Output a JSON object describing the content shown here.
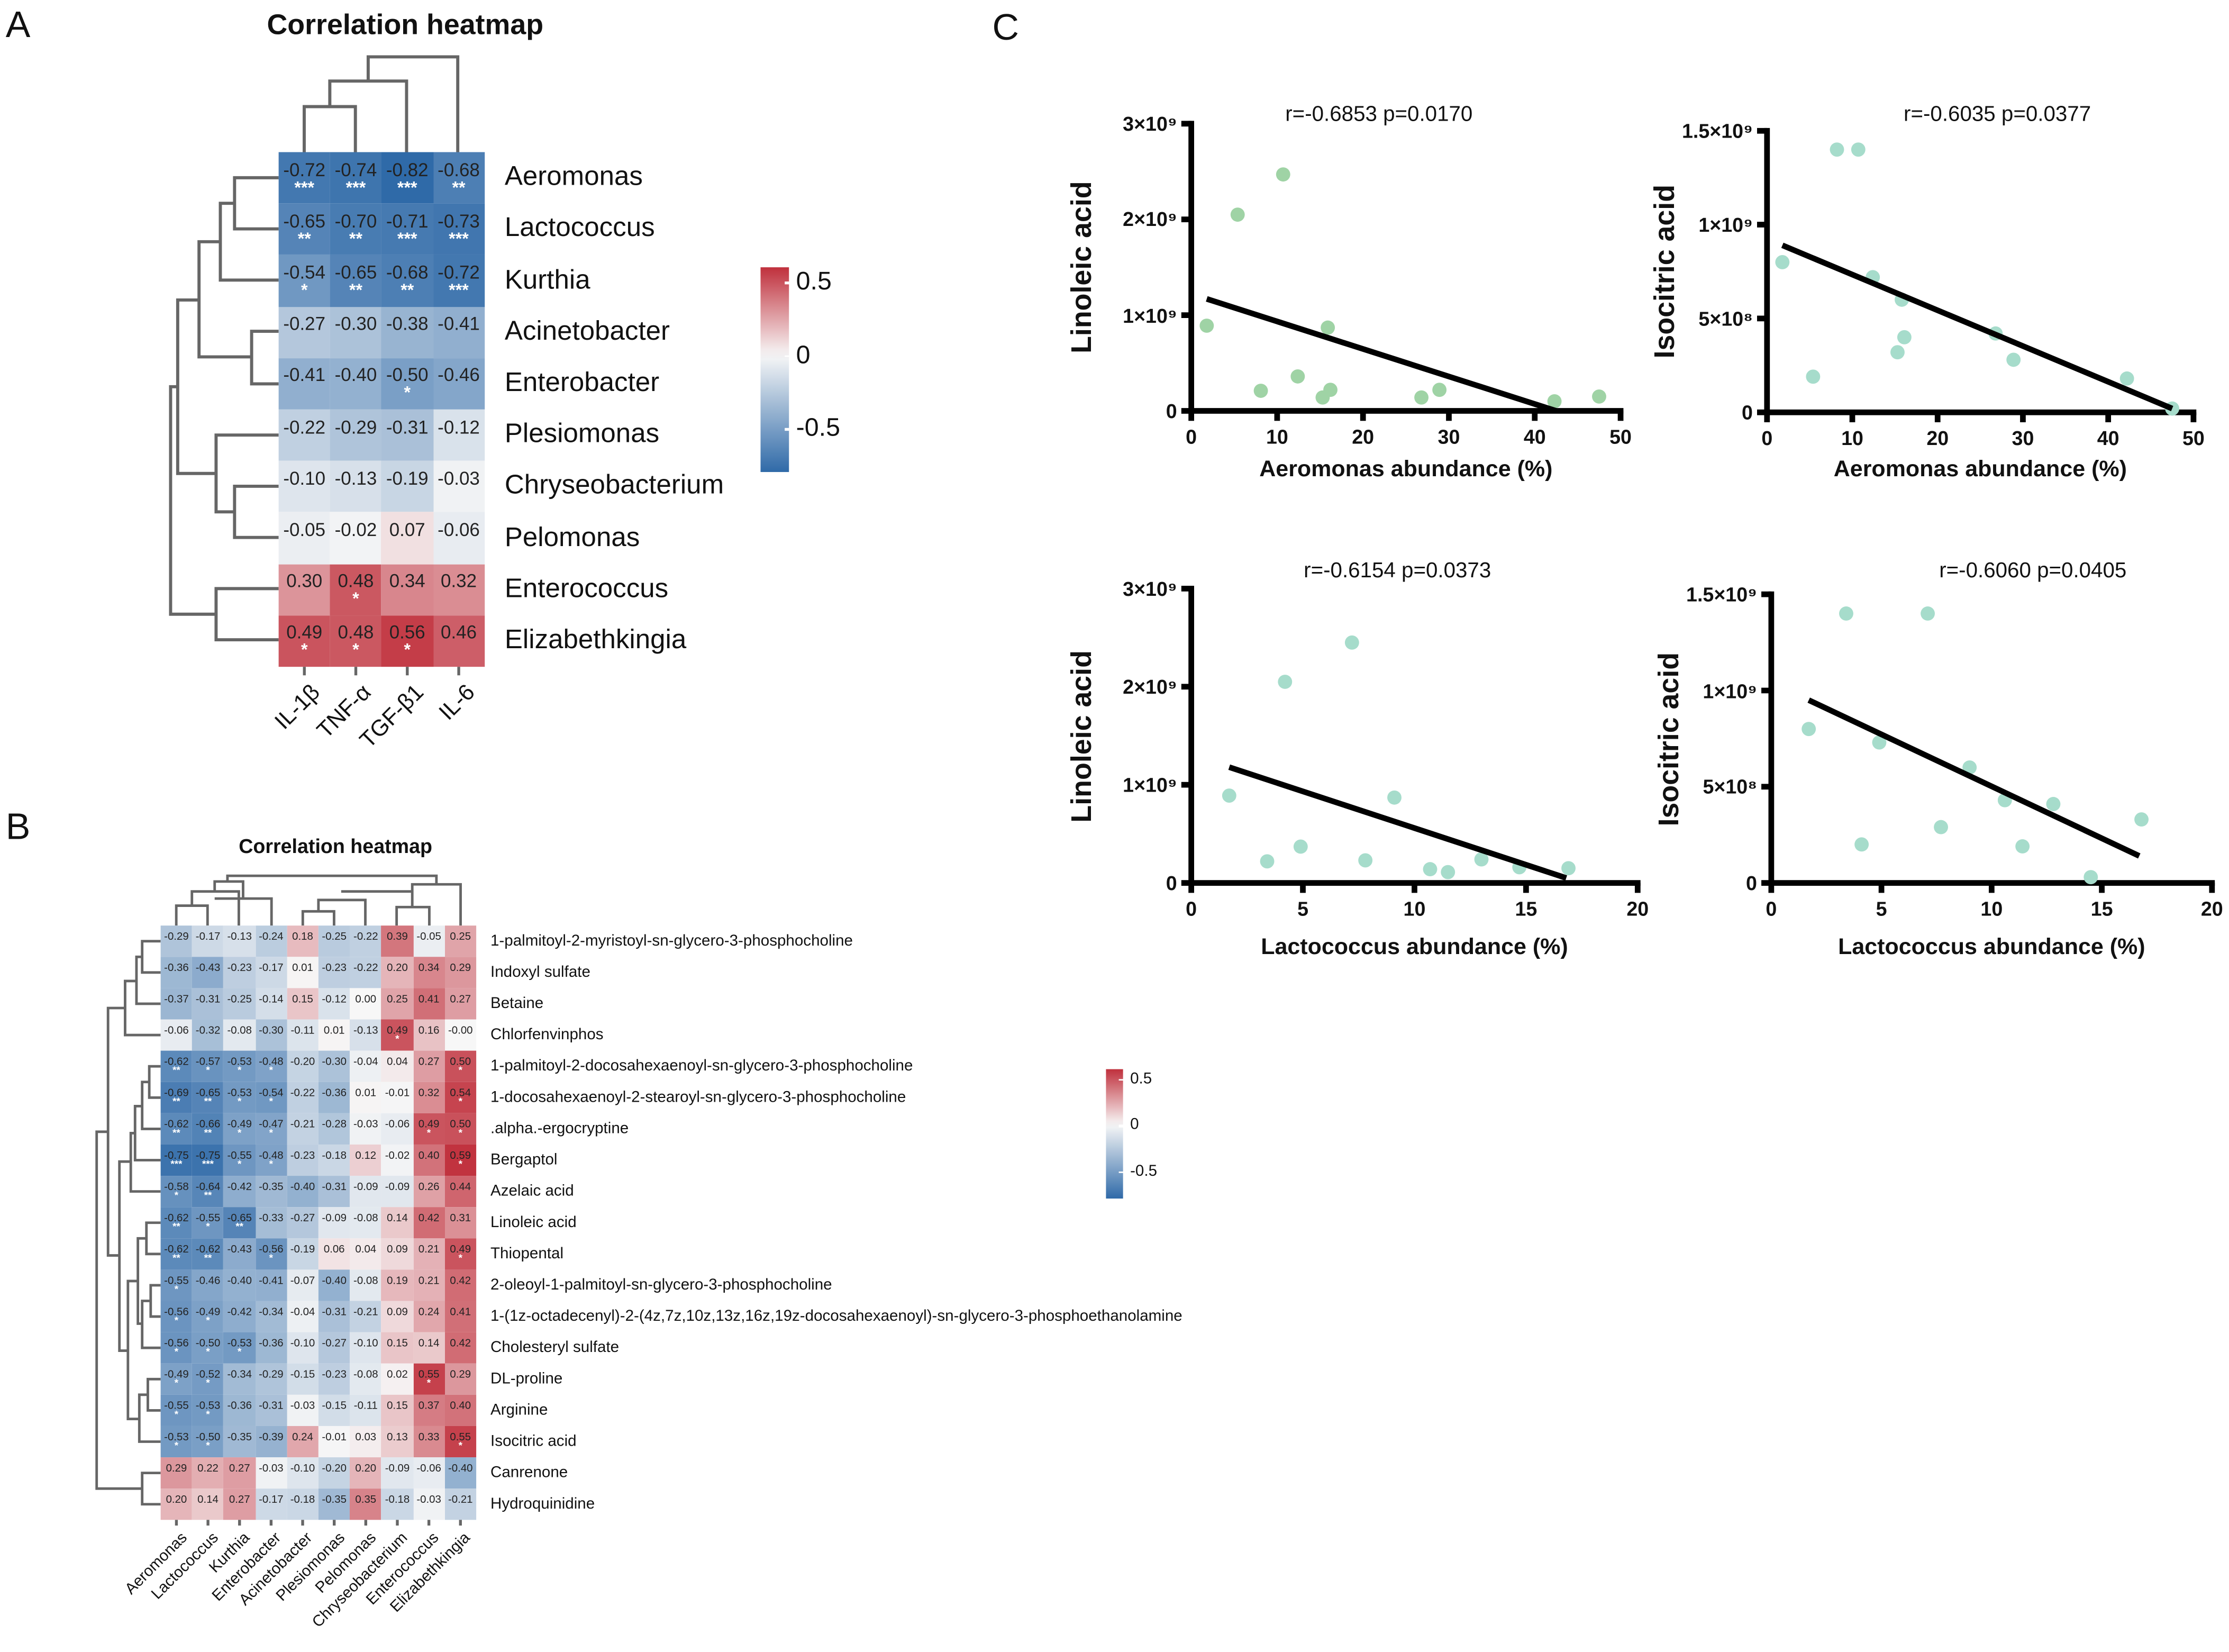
{
  "panel_labels": {
    "a": "A",
    "b": "B",
    "c": "C"
  },
  "colors": {
    "neg": "#2f6aa8",
    "mid": "#f7f7f7",
    "pos": "#c0303c",
    "point_green": "#9fd3a5",
    "point_teal": "#a6dccb",
    "line": "#000000"
  },
  "chart_data": [
    {
      "id": "A",
      "type": "heatmap",
      "title": "Correlation heatmap",
      "columns": [
        "IL-1β",
        "TNF-α",
        "TGF-β1",
        "IL-6"
      ],
      "rows": [
        {
          "name": "Aeromonas",
          "values": [
            "-0.72",
            "-0.74",
            "-0.82",
            "-0.68"
          ],
          "stars": [
            "***",
            "***",
            "***",
            "**"
          ]
        },
        {
          "name": "Lactococcus",
          "values": [
            "-0.65",
            "-0.70",
            "-0.71",
            "-0.73"
          ],
          "stars": [
            "**",
            "**",
            "***",
            "***"
          ]
        },
        {
          "name": "Kurthia",
          "values": [
            "-0.54",
            "-0.65",
            "-0.68",
            "-0.72"
          ],
          "stars": [
            "*",
            "**",
            "**",
            "***"
          ]
        },
        {
          "name": "Acinetobacter",
          "values": [
            "-0.27",
            "-0.30",
            "-0.38",
            "-0.41"
          ],
          "stars": [
            "",
            "",
            "",
            ""
          ]
        },
        {
          "name": "Enterobacter",
          "values": [
            "-0.41",
            "-0.40",
            "-0.50",
            "-0.46"
          ],
          "stars": [
            "",
            "",
            "*",
            ""
          ]
        },
        {
          "name": "Plesiomonas",
          "values": [
            "-0.22",
            "-0.29",
            "-0.31",
            "-0.12"
          ],
          "stars": [
            "",
            "",
            "",
            ""
          ]
        },
        {
          "name": "Chryseobacterium",
          "values": [
            "-0.10",
            "-0.13",
            "-0.19",
            "-0.03"
          ],
          "stars": [
            "",
            "",
            "",
            ""
          ]
        },
        {
          "name": "Pelomonas",
          "values": [
            "-0.05",
            "-0.02",
            "0.07",
            "-0.06"
          ],
          "stars": [
            "",
            "",
            "",
            ""
          ]
        },
        {
          "name": "Enterococcus",
          "values": [
            "0.30",
            "0.48",
            "0.34",
            "0.32"
          ],
          "stars": [
            "",
            "*",
            "",
            ""
          ]
        },
        {
          "name": "Elizabethkingia",
          "values": [
            "0.49",
            "0.48",
            "0.56",
            "0.46"
          ],
          "stars": [
            "*",
            "*",
            "*",
            ""
          ]
        }
      ],
      "legend": {
        "ticks": [
          "0.5",
          "0",
          "-0.5"
        ],
        "range": [
          -0.8,
          0.6
        ]
      }
    },
    {
      "id": "B",
      "type": "heatmap",
      "title": "Correlation heatmap",
      "columns": [
        "Aeromonas",
        "Lactococcus",
        "Kurthia",
        "Enterobacter",
        "Acinetobacter",
        "Plesiomonas",
        "Pelomonas",
        "Chryseobacterium",
        "Enterococcus",
        "Elizabethkingia"
      ],
      "rows": [
        {
          "name": "1-palmitoyl-2-myristoyl-sn-glycero-3-phosphocholine",
          "values": [
            "-0.29",
            "-0.17",
            "-0.13",
            "-0.24",
            "0.18",
            "-0.25",
            "-0.22",
            "0.39",
            "-0.05",
            "0.25"
          ],
          "stars": [
            "",
            "",
            "",
            "",
            "",
            "",
            "",
            "",
            "",
            ""
          ]
        },
        {
          "name": "Indoxyl sulfate",
          "values": [
            "-0.36",
            "-0.43",
            "-0.23",
            "-0.17",
            "0.01",
            "-0.23",
            "-0.22",
            "0.20",
            "0.34",
            "0.29"
          ],
          "stars": [
            "",
            "",
            "",
            "",
            "",
            "",
            "",
            "",
            "",
            ""
          ]
        },
        {
          "name": "Betaine",
          "values": [
            "-0.37",
            "-0.31",
            "-0.25",
            "-0.14",
            "0.15",
            "-0.12",
            "0.00",
            "0.25",
            "0.41",
            "0.27"
          ],
          "stars": [
            "",
            "",
            "",
            "",
            "",
            "",
            "",
            "",
            "",
            ""
          ]
        },
        {
          "name": "Chlorfenvinphos",
          "values": [
            "-0.06",
            "-0.32",
            "-0.08",
            "-0.30",
            "-0.11",
            "0.01",
            "-0.13",
            "0.49",
            "0.16",
            "-0.00"
          ],
          "stars": [
            "",
            "",
            "",
            "",
            "",
            "",
            "",
            "*",
            "",
            ""
          ]
        },
        {
          "name": "1-palmitoyl-2-docosahexaenoyl-sn-glycero-3-phosphocholine",
          "values": [
            "-0.62",
            "-0.57",
            "-0.53",
            "-0.48",
            "-0.20",
            "-0.30",
            "-0.04",
            "0.04",
            "0.27",
            "0.50"
          ],
          "stars": [
            "**",
            "*",
            "*",
            "*",
            "",
            "",
            "",
            "",
            "",
            "*"
          ]
        },
        {
          "name": "1-docosahexaenoyl-2-stearoyl-sn-glycero-3-phosphocholine",
          "values": [
            "-0.69",
            "-0.65",
            "-0.53",
            "-0.54",
            "-0.22",
            "-0.36",
            "0.01",
            "-0.01",
            "0.32",
            "0.54"
          ],
          "stars": [
            "**",
            "**",
            "*",
            "*",
            "",
            "",
            "",
            "",
            "",
            "*"
          ]
        },
        {
          "name": ".alpha.-ergocryptine",
          "values": [
            "-0.62",
            "-0.66",
            "-0.49",
            "-0.47",
            "-0.21",
            "-0.28",
            "-0.03",
            "-0.06",
            "0.49",
            "0.50"
          ],
          "stars": [
            "**",
            "**",
            "*",
            "*",
            "",
            "",
            "",
            "",
            "*",
            "*"
          ]
        },
        {
          "name": "Bergaptol",
          "values": [
            "-0.75",
            "-0.75",
            "-0.55",
            "-0.48",
            "-0.23",
            "-0.18",
            "0.12",
            "-0.02",
            "0.40",
            "0.59"
          ],
          "stars": [
            "***",
            "***",
            "*",
            "*",
            "",
            "",
            "",
            "",
            "",
            "*"
          ]
        },
        {
          "name": "Azelaic acid",
          "values": [
            "-0.58",
            "-0.64",
            "-0.42",
            "-0.35",
            "-0.40",
            "-0.31",
            "-0.09",
            "-0.09",
            "0.26",
            "0.44"
          ],
          "stars": [
            "*",
            "**",
            "",
            "",
            "",
            "",
            "",
            "",
            "",
            ""
          ]
        },
        {
          "name": "Linoleic acid",
          "values": [
            "-0.62",
            "-0.55",
            "-0.65",
            "-0.33",
            "-0.27",
            "-0.09",
            "-0.08",
            "0.14",
            "0.42",
            "0.31"
          ],
          "stars": [
            "**",
            "*",
            "**",
            "",
            "",
            "",
            "",
            "",
            "",
            ""
          ]
        },
        {
          "name": "Thiopental",
          "values": [
            "-0.62",
            "-0.62",
            "-0.43",
            "-0.56",
            "-0.19",
            "0.06",
            "0.04",
            "0.09",
            "0.21",
            "0.49"
          ],
          "stars": [
            "**",
            "**",
            "",
            "*",
            "",
            "",
            "",
            "",
            "",
            "*"
          ]
        },
        {
          "name": "2-oleoyl-1-palmitoyl-sn-glycero-3-phosphocholine",
          "values": [
            "-0.55",
            "-0.46",
            "-0.40",
            "-0.41",
            "-0.07",
            "-0.40",
            "-0.08",
            "0.19",
            "0.21",
            "0.42"
          ],
          "stars": [
            "*",
            "",
            "",
            "",
            "",
            "",
            "",
            "",
            "",
            ""
          ]
        },
        {
          "name": "1-(1z-octadecenyl)-2-(4z,7z,10z,13z,16z,19z-docosahexaenoyl)-sn-glycero-3-phosphoethanolamine",
          "values": [
            "-0.56",
            "-0.49",
            "-0.42",
            "-0.34",
            "-0.04",
            "-0.31",
            "-0.21",
            "0.09",
            "0.24",
            "0.41"
          ],
          "stars": [
            "*",
            "*",
            "",
            "",
            "",
            "",
            "",
            "",
            "",
            ""
          ]
        },
        {
          "name": "Cholesteryl sulfate",
          "values": [
            "-0.56",
            "-0.50",
            "-0.53",
            "-0.36",
            "-0.10",
            "-0.27",
            "-0.10",
            "0.15",
            "0.14",
            "0.42"
          ],
          "stars": [
            "*",
            "*",
            "*",
            "",
            "",
            "",
            "",
            "",
            "",
            ""
          ]
        },
        {
          "name": "DL-proline",
          "values": [
            "-0.49",
            "-0.52",
            "-0.34",
            "-0.29",
            "-0.15",
            "-0.23",
            "-0.08",
            "0.02",
            "0.55",
            "0.29"
          ],
          "stars": [
            "*",
            "*",
            "",
            "",
            "",
            "",
            "",
            "",
            "*",
            ""
          ]
        },
        {
          "name": "Arginine",
          "values": [
            "-0.55",
            "-0.53",
            "-0.36",
            "-0.31",
            "-0.03",
            "-0.15",
            "-0.11",
            "0.15",
            "0.37",
            "0.40"
          ],
          "stars": [
            "*",
            "*",
            "",
            "",
            "",
            "",
            "",
            "",
            "",
            ""
          ]
        },
        {
          "name": "Isocitric acid",
          "values": [
            "-0.53",
            "-0.50",
            "-0.35",
            "-0.39",
            "0.24",
            "-0.01",
            "0.03",
            "0.13",
            "0.33",
            "0.55"
          ],
          "stars": [
            "*",
            "*",
            "",
            "",
            "",
            "",
            "",
            "",
            "",
            "*"
          ]
        },
        {
          "name": "Canrenone",
          "values": [
            "0.29",
            "0.22",
            "0.27",
            "-0.03",
            "-0.10",
            "-0.20",
            "0.20",
            "-0.09",
            "-0.06",
            "-0.40"
          ],
          "stars": [
            "",
            "",
            "",
            "",
            "",
            "",
            "",
            "",
            "",
            ""
          ]
        },
        {
          "name": "Hydroquinidine",
          "values": [
            "0.20",
            "0.14",
            "0.27",
            "-0.17",
            "-0.18",
            "-0.35",
            "0.35",
            "-0.18",
            "-0.03",
            "-0.21"
          ],
          "stars": [
            "",
            "",
            "",
            "",
            "",
            "",
            "",
            "",
            "",
            ""
          ]
        }
      ],
      "legend": {
        "ticks": [
          "0.5",
          "0",
          "-0.5"
        ],
        "range": [
          -0.8,
          0.6
        ]
      }
    },
    {
      "id": "C1",
      "type": "scatter",
      "title": "r=-0.6853 p=0.0170",
      "xlabel": "Aeromonas abundance (%)",
      "ylabel": "Linoleic acid",
      "xlim": [
        0,
        50
      ],
      "ylim": [
        0,
        3000000000.0
      ],
      "xticks": [
        0,
        10,
        20,
        30,
        40,
        50
      ],
      "xtick_labels": [
        "0",
        "10",
        "20",
        "30",
        "40",
        "50"
      ],
      "yticks": [
        0,
        1000000000.0,
        2000000000.0,
        3000000000.0
      ],
      "ytick_labels": [
        "0",
        "1×10⁹",
        "2×10⁹",
        "3×10⁹"
      ],
      "point_color": "green",
      "points": [
        [
          1.8,
          890000000.0
        ],
        [
          5.4,
          2050000000.0
        ],
        [
          10.7,
          2470000000.0
        ],
        [
          8.1,
          210000000.0
        ],
        [
          12.4,
          360000000.0
        ],
        [
          15.9,
          870000000.0
        ],
        [
          16.2,
          220000000.0
        ],
        [
          15.3,
          140000000.0
        ],
        [
          26.8,
          140000000.0
        ],
        [
          28.9,
          220000000.0
        ],
        [
          42.3,
          100000000.0
        ],
        [
          47.5,
          150000000.0
        ]
      ],
      "fit": [
        [
          1.8,
          1170000000.0
        ],
        [
          42.5,
          0
        ]
      ]
    },
    {
      "id": "C2",
      "type": "scatter",
      "title": "r=-0.6035 p=0.0377",
      "xlabel": "Aeromonas abundance (%)",
      "ylabel": "Isocitric acid",
      "xlim": [
        0,
        50
      ],
      "ylim": [
        0,
        1500000000.0
      ],
      "xticks": [
        0,
        10,
        20,
        30,
        40,
        50
      ],
      "xtick_labels": [
        "0",
        "10",
        "20",
        "30",
        "40",
        "50"
      ],
      "yticks": [
        0,
        500000000.0,
        1000000000.0,
        1500000000.0
      ],
      "ytick_labels": [
        "0",
        "5×10⁸",
        "1×10⁹",
        "1.5×10⁹"
      ],
      "point_color": "teal",
      "points": [
        [
          8.2,
          1400000000.0
        ],
        [
          10.7,
          1400000000.0
        ],
        [
          1.8,
          800000000.0
        ],
        [
          12.4,
          720000000.0
        ],
        [
          15.8,
          600000000.0
        ],
        [
          16.1,
          400000000.0
        ],
        [
          15.3,
          320000000.0
        ],
        [
          5.4,
          190000000.0
        ],
        [
          26.8,
          420000000.0
        ],
        [
          28.9,
          280000000.0
        ],
        [
          42.2,
          180000000.0
        ],
        [
          47.5,
          20000000.0
        ]
      ],
      "fit": [
        [
          1.8,
          890000000.0
        ],
        [
          47.5,
          20000000.0
        ]
      ]
    },
    {
      "id": "C3",
      "type": "scatter",
      "title": "r=-0.6154 p=0.0373",
      "xlabel": "Lactococcus abundance (%)",
      "ylabel": "Linoleic acid",
      "xlim": [
        0,
        20
      ],
      "ylim": [
        0,
        3000000000.0
      ],
      "xticks": [
        0,
        5,
        10,
        15,
        20
      ],
      "xtick_labels": [
        "0",
        "5",
        "10",
        "15",
        "20"
      ],
      "yticks": [
        0,
        1000000000.0,
        2000000000.0,
        3000000000.0
      ],
      "ytick_labels": [
        "0",
        "1×10⁹",
        "2×10⁹",
        "3×10⁹"
      ],
      "point_color": "teal",
      "points": [
        [
          1.7,
          890000000.0
        ],
        [
          4.2,
          2050000000.0
        ],
        [
          7.2,
          2450000000.0
        ],
        [
          3.4,
          220000000.0
        ],
        [
          4.9,
          370000000.0
        ],
        [
          7.8,
          230000000.0
        ],
        [
          9.1,
          870000000.0
        ],
        [
          10.7,
          140000000.0
        ],
        [
          11.5,
          110000000.0
        ],
        [
          13.0,
          240000000.0
        ],
        [
          14.7,
          160000000.0
        ],
        [
          16.9,
          150000000.0
        ]
      ],
      "fit": [
        [
          1.7,
          1180000000.0
        ],
        [
          16.8,
          50000000.0
        ]
      ]
    },
    {
      "id": "C4",
      "type": "scatter",
      "title": "r=-0.6060 p=0.0405",
      "xlabel": "Lactococcus abundance (%)",
      "ylabel": "Isocitric acid",
      "xlim": [
        0,
        20
      ],
      "ylim": [
        0,
        1500000000.0
      ],
      "xticks": [
        0,
        5,
        10,
        15,
        20
      ],
      "xtick_labels": [
        "0",
        "5",
        "10",
        "15",
        "20"
      ],
      "yticks": [
        0,
        500000000.0,
        1000000000.0,
        1500000000.0
      ],
      "ytick_labels": [
        "0",
        "5×10⁸",
        "1×10⁹",
        "1.5×10⁹"
      ],
      "point_color": "teal",
      "points": [
        [
          3.4,
          1400000000.0
        ],
        [
          7.1,
          1400000000.0
        ],
        [
          1.7,
          800000000.0
        ],
        [
          4.9,
          730000000.0
        ],
        [
          9.0,
          600000000.0
        ],
        [
          10.6,
          430000000.0
        ],
        [
          12.8,
          410000000.0
        ],
        [
          7.7,
          290000000.0
        ],
        [
          4.1,
          200000000.0
        ],
        [
          11.4,
          190000000.0
        ],
        [
          14.5,
          30000000.0
        ],
        [
          16.8,
          330000000.0
        ]
      ],
      "fit": [
        [
          1.7,
          950000000.0
        ],
        [
          16.7,
          140000000.0
        ]
      ]
    }
  ]
}
